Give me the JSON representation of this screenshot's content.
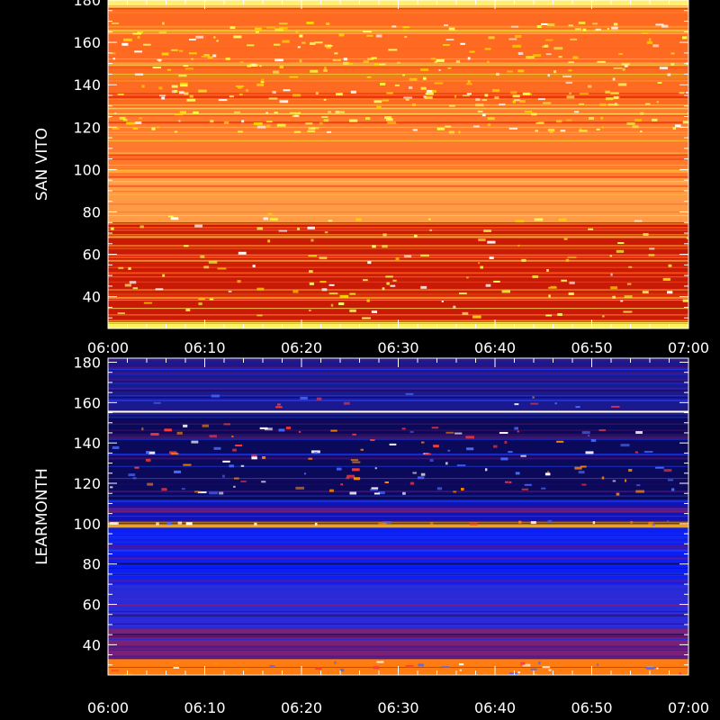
{
  "chart_data": [
    {
      "type": "heatmap",
      "ylabel": "SAN VITO",
      "xlabel": "",
      "x_ticks": [
        "06:00",
        "06:10",
        "06:20",
        "06:30",
        "06:40",
        "06:50",
        "07:00"
      ],
      "xlim_minutes_after_0600": [
        0,
        60
      ],
      "y_ticks": [
        40,
        60,
        80,
        100,
        120,
        140,
        160,
        180
      ],
      "ylim": [
        25,
        180
      ],
      "colormap": "hot (black-red-orange-yellow-white)",
      "bands": [
        {
          "y_from": 25,
          "y_to": 28,
          "color": "#fdf25a"
        },
        {
          "y_from": 28,
          "y_to": 75,
          "color": "#c81a05",
          "texture": "speckled, brighter red streaks after 06:25"
        },
        {
          "y_from": 75,
          "y_to": 96,
          "color": "#ff9a46"
        },
        {
          "y_from": 96,
          "y_to": 128,
          "color": "#ff7a2c",
          "texture": "scattered bright yellow bursts 118-128"
        },
        {
          "y_from": 128,
          "y_to": 129,
          "color": "#ffffff"
        },
        {
          "y_from": 129,
          "y_to": 176,
          "color": "#ff6a22",
          "texture": "many yellow speckled lines"
        },
        {
          "y_from": 176,
          "y_to": 180,
          "color": "#fff070"
        }
      ],
      "grid": false
    },
    {
      "type": "heatmap",
      "ylabel": "LEARMONTH",
      "xlabel": "",
      "x_ticks": [
        "06:00",
        "06:10",
        "06:20",
        "06:30",
        "06:40",
        "06:50",
        "07:00"
      ],
      "xlim_minutes_after_0600": [
        0,
        60
      ],
      "y_ticks": [
        40,
        60,
        80,
        100,
        120,
        140,
        160,
        180
      ],
      "ylim": [
        25,
        182
      ],
      "colormap": "blue-purple-red-orange-yellow-white",
      "bands": [
        {
          "y_from": 25,
          "y_to": 33,
          "color": "#ff7d10",
          "texture": "orange-yellow at bottom"
        },
        {
          "y_from": 33,
          "y_to": 48,
          "color": "#7a2277"
        },
        {
          "y_from": 48,
          "y_to": 70,
          "color": "#2a2ad8"
        },
        {
          "y_from": 70,
          "y_to": 98,
          "color": "#0b1ef5"
        },
        {
          "y_from": 98,
          "y_to": 101,
          "color": "#f0a010"
        },
        {
          "y_from": 101,
          "y_to": 112,
          "color": "#0d14b8"
        },
        {
          "y_from": 112,
          "y_to": 155,
          "color": "#0b0a5a",
          "texture": "dotted lines with red/blue bursts"
        },
        {
          "y_from": 155,
          "y_to": 156,
          "color": "#ffffff"
        },
        {
          "y_from": 156,
          "y_to": 182,
          "color": "#1a1a90"
        }
      ],
      "grid": false
    }
  ]
}
